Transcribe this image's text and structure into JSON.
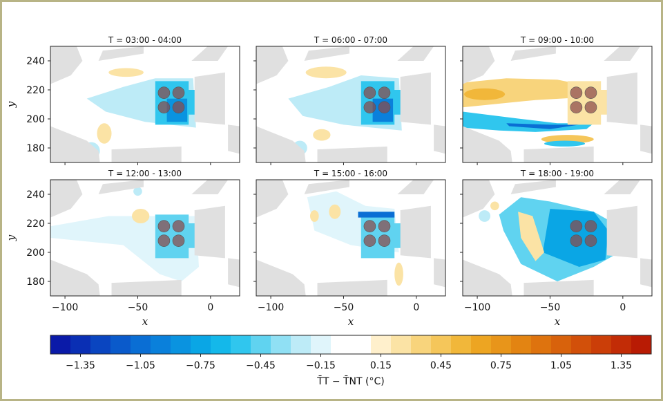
{
  "chart_data": {
    "type": "heatmap",
    "panels": [
      {
        "title": "T = 03:00 - 04:00"
      },
      {
        "title": "T = 06:00 - 07:00"
      },
      {
        "title": "T = 09:00 - 10:00"
      },
      {
        "title": "T = 12:00 - 13:00"
      },
      {
        "title": "T = 15:00 - 16:00"
      },
      {
        "title": "T = 18:00 - 19:00"
      }
    ],
    "xlabel": "x",
    "ylabel": "y",
    "xlim": [
      -110,
      20
    ],
    "ylim": [
      170,
      250
    ],
    "x_ticks": [
      -100,
      -50,
      0
    ],
    "x_tick_labels": [
      "−100",
      "−50",
      "0"
    ],
    "y_ticks": [
      180,
      200,
      220,
      240
    ],
    "y_tick_labels": [
      "180",
      "200",
      "220",
      "240"
    ],
    "colorbar": {
      "label": "T̄T − T̄NT (°C)",
      "range": [
        -1.5,
        1.5
      ],
      "step": 0.1,
      "tick_values": [
        -1.35,
        -1.05,
        -0.75,
        -0.45,
        -0.15,
        0.15,
        0.45,
        0.75,
        1.05,
        1.35
      ],
      "tick_labels": [
        "−1.35",
        "−1.05",
        "−0.75",
        "−0.45",
        "−0.15",
        "0.15",
        "0.45",
        "0.75",
        "1.05",
        "1.35"
      ]
    },
    "trees": [
      [
        -32,
        218
      ],
      [
        -22,
        218
      ],
      [
        -32,
        208
      ],
      [
        -22,
        208
      ]
    ],
    "colors": {
      "building": "#e0e0e0",
      "tree": "#8a4a4a",
      "neutral": "#ffffff"
    }
  }
}
